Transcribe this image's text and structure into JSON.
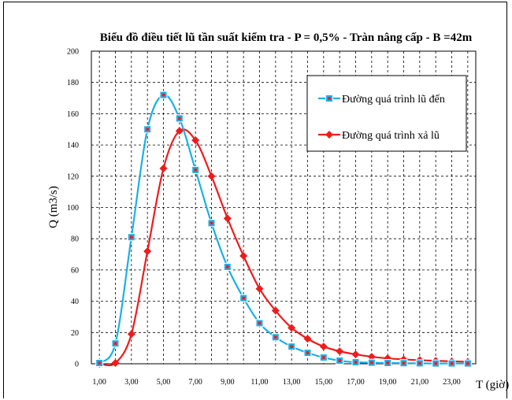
{
  "chart_data": {
    "type": "line",
    "title": "Biểu đồ điều tiết lũ tần suất kiểm tra - P = 0,5% - Tràn nâng cấp - B =42m",
    "xlabel": "T (giờ)",
    "ylabel": "Q (m3/s)",
    "xlim": [
      0.5,
      24.5
    ],
    "ylim": [
      0,
      200
    ],
    "x_ticks": [
      "1,00",
      "3,00",
      "5,00",
      "7,00",
      "9,00",
      "11,00",
      "13,00",
      "15,00",
      "17,00",
      "19,00",
      "21,00",
      "23,00"
    ],
    "y_ticks": [
      "0",
      "20",
      "40",
      "60",
      "80",
      "100",
      "120",
      "140",
      "160",
      "180",
      "200"
    ],
    "grid": true,
    "legend_position": "right-upper",
    "x": [
      1,
      2,
      3,
      4,
      5,
      6,
      7,
      8,
      9,
      10,
      11,
      12,
      13,
      14,
      15,
      16,
      17,
      18,
      19,
      20,
      21,
      22,
      23,
      24
    ],
    "series": [
      {
        "name": "Đường quá trình lũ đến",
        "color": "#1ab0e6",
        "marker": "square",
        "values": [
          0.5,
          13,
          81,
          150,
          172,
          157,
          124,
          90,
          62,
          42,
          26,
          17,
          11,
          7,
          4,
          2,
          1,
          0.7,
          0.5,
          0.4,
          0.3,
          0.2,
          0.2,
          0.2
        ]
      },
      {
        "name": "Đường quá trình xả lũ",
        "color": "#ee1c1c",
        "marker": "diamond",
        "values": [
          0,
          0.5,
          19,
          72,
          125,
          149,
          143,
          120,
          93,
          69,
          48,
          34,
          23,
          16,
          11,
          8,
          6,
          4.5,
          3.5,
          2.8,
          2.3,
          1.9,
          1.6,
          1.3
        ]
      }
    ]
  }
}
